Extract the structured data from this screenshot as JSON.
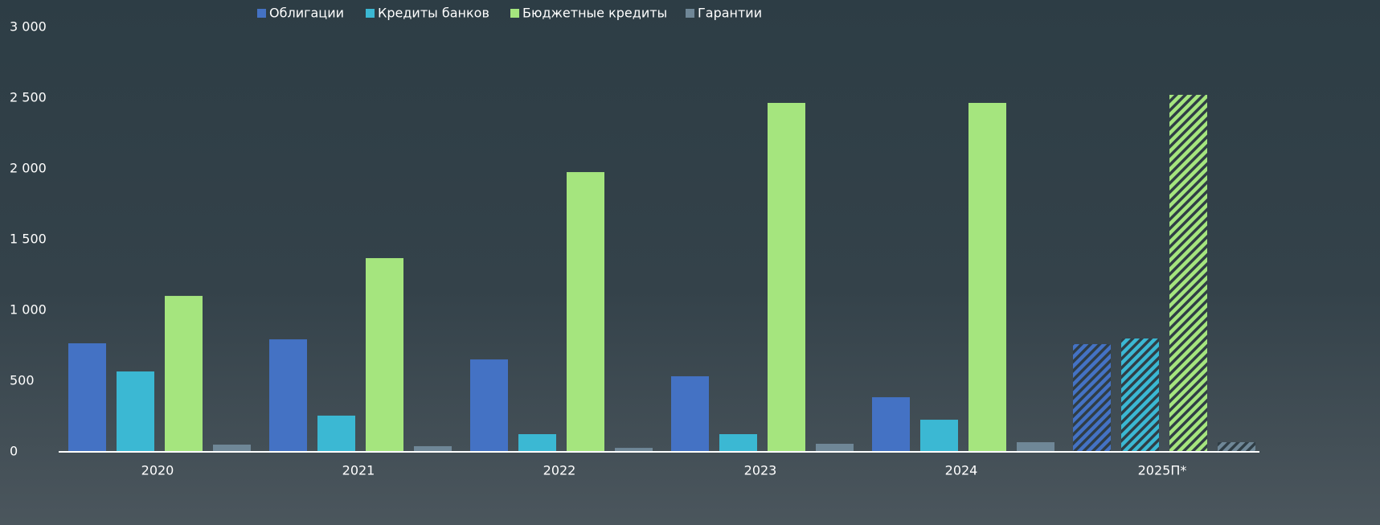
{
  "chart_data": {
    "type": "bar",
    "categories": [
      "2020",
      "2021",
      "2022",
      "2023",
      "2024",
      "2025П*"
    ],
    "series": [
      {
        "name": "Облигации",
        "color": "#4472c4",
        "values": [
          767,
          795,
          653,
          534,
          386,
          761
        ]
      },
      {
        "name": "Кредиты банков",
        "color": "#3bb8d3",
        "values": [
          568,
          256,
          125,
          125,
          227,
          801
        ]
      },
      {
        "name": "Бюджетные кредиты",
        "color": "#a5e57e",
        "values": [
          1102,
          1369,
          1977,
          2466,
          2466,
          2523
        ]
      },
      {
        "name": "Гарантии",
        "color": "#6f8797",
        "values": [
          51,
          40,
          28,
          57,
          68,
          68
        ]
      }
    ],
    "hatched": [
      false,
      false,
      false,
      false,
      false,
      true
    ],
    "ylim": [
      0,
      3000
    ],
    "yticks": [
      0,
      500,
      {
        "value": 1000,
        "label": "1 000"
      },
      {
        "value": 1500,
        "label": "1 500"
      },
      {
        "value": 2000,
        "label": "2 000"
      },
      {
        "value": 2500,
        "label": "2 500"
      },
      {
        "value": 3000,
        "label": "3 000"
      }
    ],
    "legend": "top"
  }
}
